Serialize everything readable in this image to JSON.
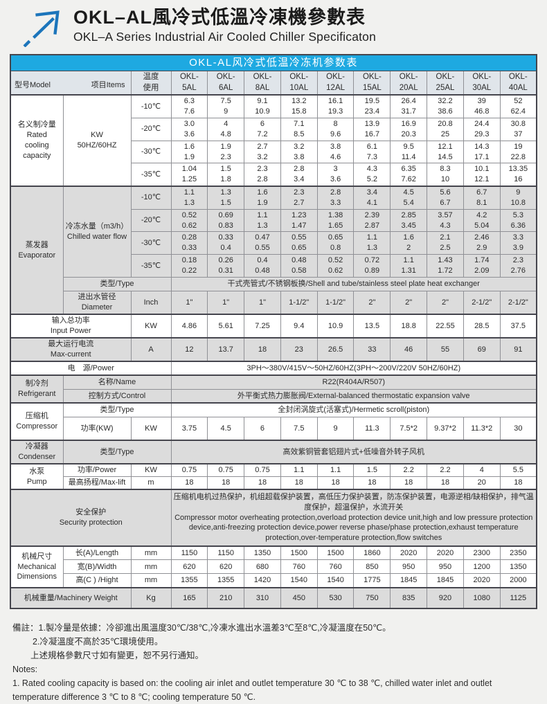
{
  "page": {
    "title_zh": "OKL–AL風冷式低溫冷凍機參數表",
    "title_en": "OKL–A Series Industrial Air Cooled Chiller Specificaton"
  },
  "colors": {
    "accent_cyan": "#1ea9e1",
    "arrow_blue": "#1c75bb",
    "header_row_bg": "#e0e5ea",
    "shaded_row_bg": "#dcdcdc",
    "page_bg": "#f1f1ef"
  },
  "table": {
    "title": "OKL-AL风冷式低温冷冻机参数表",
    "corner": {
      "model_label": "型号Model",
      "items_label": "项目Items"
    },
    "temp_header": "温度\n使用",
    "model_prefix": "OKL-",
    "models": [
      "5AL",
      "6AL",
      "8AL",
      "10AL",
      "12AL",
      "15AL",
      "20AL",
      "25AL",
      "30AL",
      "40AL"
    ],
    "rows": [
      {
        "size": "md",
        "sep": true,
        "left": [
          {
            "t": "名义制冷量\nRated\ncooling\ncapacity",
            "rs": 4,
            "cls": "cat",
            "n": "cell-category"
          },
          {
            "t": "KW\n50HZ/60HZ",
            "rs": 4,
            "cls": "item",
            "n": "cell-item"
          },
          {
            "t": "-10℃",
            "cls": "unit",
            "n": "cell-temp"
          }
        ],
        "values": [
          "6.3\n7.6",
          "7.5\n9",
          "9.1\n10.9",
          "13.2\n15.8",
          "16.1\n19.3",
          "19.5\n23.4",
          "26.4\n31.7",
          "32.2\n38.6",
          "39\n46.8",
          "52\n62.4"
        ]
      },
      {
        "size": "md",
        "left": [
          {
            "t": "-20℃",
            "cls": "unit",
            "n": "cell-temp"
          }
        ],
        "values": [
          "3.0\n3.6",
          "4\n4.8",
          "6\n7.2",
          "7.1\n8.5",
          "8\n9.6",
          "13.9\n16.7",
          "16.9\n20.3",
          "20.8\n25",
          "24.4\n29.3",
          "30.8\n37"
        ]
      },
      {
        "size": "md",
        "left": [
          {
            "t": "-30℃",
            "cls": "unit",
            "n": "cell-temp"
          }
        ],
        "values": [
          "1.6\n1.9",
          "1.9\n2.3",
          "2.7\n3.2",
          "3.2\n3.8",
          "3.8\n4.6",
          "6.1\n7.3",
          "9.5\n11.4",
          "12.1\n14.5",
          "14.3\n17.1",
          "19\n22.8"
        ]
      },
      {
        "size": "md",
        "left": [
          {
            "t": "-35℃",
            "cls": "unit",
            "n": "cell-temp"
          }
        ],
        "values": [
          "1.04\n1.25",
          "1.5\n1.8",
          "2.3\n2.8",
          "2.8\n3.4",
          "3\n3.6",
          "4.3\n5.2",
          "6.35\n7.62",
          "8.3\n10",
          "10.1\n12.1",
          "13.35\n16"
        ]
      },
      {
        "size": "md",
        "sep": true,
        "shaded": true,
        "left": [
          {
            "t": "蒸发器\nEvaporator",
            "rs": 6,
            "cls": "cat",
            "n": "cell-category"
          },
          {
            "t": "冷冻水量（m3/h）\nChilled water flow",
            "rs": 4,
            "cls": "item",
            "n": "cell-item"
          },
          {
            "t": "-10℃",
            "cls": "unit",
            "n": "cell-temp"
          }
        ],
        "values": [
          "1.1\n1.3",
          "1.3\n1.5",
          "1.6\n1.9",
          "2.3\n2.7",
          "2.8\n3.3",
          "3.4\n4.1",
          "4.5\n5.4",
          "5.6\n6.7",
          "6.7\n8.1",
          "9\n10.8"
        ]
      },
      {
        "size": "md",
        "shaded": true,
        "left": [
          {
            "t": "-20℃",
            "cls": "unit",
            "n": "cell-temp"
          }
        ],
        "values": [
          "0.52\n0.62",
          "0.69\n0.83",
          "1.1\n1.3",
          "1.23\n1.47",
          "1.38\n1.65",
          "2.39\n2.87",
          "2.85\n3.45",
          "3.57\n4.3",
          "4.2\n5.04",
          "5.3\n6.36"
        ]
      },
      {
        "size": "md",
        "shaded": true,
        "left": [
          {
            "t": "-30℃",
            "cls": "unit",
            "n": "cell-temp"
          }
        ],
        "values": [
          "0.28\n0.33",
          "0.33\n0.4",
          "0.47\n0.55",
          "0.55\n0.65",
          "0.65\n0.8",
          "1.1\n1.3",
          "1.6\n2",
          "2.1\n2.5",
          "2.46\n2.9",
          "3.3\n3.9"
        ]
      },
      {
        "size": "md",
        "shaded": true,
        "left": [
          {
            "t": "-35℃",
            "cls": "unit",
            "n": "cell-temp"
          }
        ],
        "values": [
          "0.18\n0.22",
          "0.26\n0.31",
          "0.4\n0.48",
          "0.48\n0.58",
          "0.52\n0.62",
          "0.72\n0.89",
          "1.1\n1.31",
          "1.43\n1.72",
          "1.74\n2.09",
          "2.3\n2.76"
        ]
      },
      {
        "size": "sm",
        "shaded": true,
        "left": [
          {
            "t": "类型/Type",
            "cs": 2,
            "cls": "item",
            "n": "cell-item"
          }
        ],
        "value": "干式壳管式/不锈钢板换/Shell and tube/stainless steel plate heat exchanger"
      },
      {
        "size": "lg",
        "shaded": true,
        "left": [
          {
            "t": "进出水管径\nDiameter",
            "cls": "item",
            "n": "cell-item"
          },
          {
            "t": "Inch",
            "cls": "unit",
            "n": "cell-unit"
          }
        ],
        "values": [
          "1\"",
          "1\"",
          "1\"",
          "1-1/2\"",
          "1-1/2\"",
          "2\"",
          "2\"",
          "2\"",
          "2-1/2\"",
          "2-1/2\""
        ]
      },
      {
        "size": "lg",
        "sep": true,
        "left": [
          {
            "t": "输入总功率\nInput Power",
            "cs": 2,
            "cls": "cat",
            "n": "cell-category"
          },
          {
            "t": "KW",
            "cls": "unit",
            "n": "cell-unit"
          }
        ],
        "values": [
          "4.86",
          "5.61",
          "7.25",
          "9.4",
          "10.9",
          "13.5",
          "18.8",
          "22.55",
          "28.5",
          "37.5"
        ]
      },
      {
        "size": "lg",
        "sep": true,
        "shaded": true,
        "left": [
          {
            "t": "最大运行电流\nMax-current",
            "cs": 2,
            "cls": "cat",
            "n": "cell-category"
          },
          {
            "t": "A",
            "cls": "unit",
            "n": "cell-unit"
          }
        ],
        "values": [
          "12",
          "13.7",
          "18",
          "23",
          "26.5",
          "33",
          "46",
          "55",
          "69",
          "91"
        ]
      },
      {
        "size": "sm",
        "sep": true,
        "left": [
          {
            "t": "电　源/Power",
            "cs": 3,
            "cls": "cat",
            "n": "cell-category"
          }
        ],
        "value": "3PH～380V/415V～50HZ/60HZ(3PH～200V/220V  50HZ/60HZ)"
      },
      {
        "size": "sm",
        "sep": true,
        "shaded": true,
        "left": [
          {
            "t": "制冷剂\nRefrigerant",
            "rs": 2,
            "cls": "cat",
            "n": "cell-category"
          },
          {
            "t": "名称/Name",
            "cs": 2,
            "cls": "item",
            "n": "cell-item"
          }
        ],
        "value": "R22(R404A/R507)"
      },
      {
        "size": "sm",
        "shaded": true,
        "left": [
          {
            "t": "控制方式/Control",
            "cs": 2,
            "cls": "item",
            "n": "cell-item"
          }
        ],
        "value": "外平衡式热力膨胀阀/External-balanced thermostatic expansion valve"
      },
      {
        "size": "sm",
        "sep": true,
        "left": [
          {
            "t": "压缩机\nCompressor",
            "rs": 2,
            "cls": "cat",
            "n": "cell-category"
          },
          {
            "t": "类型/Type",
            "cs": 2,
            "cls": "item",
            "n": "cell-item"
          }
        ],
        "value": "全封闭涡旋式(活塞式)/Hermetic scroll(piston)"
      },
      {
        "size": "lg",
        "left": [
          {
            "t": "功率(KW)",
            "cls": "item",
            "n": "cell-item"
          },
          {
            "t": "KW",
            "cls": "unit",
            "n": "cell-unit"
          }
        ],
        "values": [
          "3.75",
          "4.5",
          "6",
          "7.5",
          "9",
          "11.3",
          "7.5*2",
          "9.37*2",
          "11.3*2",
          "30"
        ]
      },
      {
        "size": "lg",
        "sep": true,
        "shaded": true,
        "left": [
          {
            "t": "冷凝器\nCondenser",
            "cls": "cat",
            "n": "cell-category"
          },
          {
            "t": "类型/Type",
            "cs": 2,
            "cls": "item",
            "n": "cell-item"
          }
        ],
        "value": "高效紫铜管套铝翅片式+低噪音外转子风机"
      },
      {
        "size": "xs",
        "sep": true,
        "left": [
          {
            "t": "水泵\nPump",
            "rs": 2,
            "cls": "cat",
            "n": "cell-category"
          },
          {
            "t": "功率/Power",
            "cls": "item",
            "n": "cell-item"
          },
          {
            "t": "KW",
            "cls": "unit",
            "n": "cell-unit"
          }
        ],
        "values": [
          "0.75",
          "0.75",
          "0.75",
          "1.1",
          "1.1",
          "1.5",
          "2.2",
          "2.2",
          "4",
          "5.5"
        ]
      },
      {
        "size": "xs",
        "left": [
          {
            "t": "最高扬程/Max-lift",
            "cls": "item",
            "n": "cell-item"
          },
          {
            "t": "m",
            "cls": "unit",
            "n": "cell-unit"
          }
        ],
        "values": [
          "18",
          "18",
          "18",
          "18",
          "18",
          "18",
          "18",
          "18",
          "20",
          "18"
        ]
      },
      {
        "size": "xl",
        "sep": true,
        "shaded": true,
        "leftAlign": true,
        "left": [
          {
            "t": "安全保护\nSecurity protection",
            "cs": 3,
            "cls": "cat",
            "n": "cell-category"
          }
        ],
        "value": "压缩机电机过热保护，机组超载保护装置，高低压力保护装置，防冻保护装置，电源逆相/缺相保护，排气温度保护，超温保护，水流开关\n Compressor motor overheating protection,overload protection device unit,high and low pressure protection device,anti-freezing protection device,power reverse phase/phase protection,exhaust temperature protection,over-temperature protection,flow switches"
      },
      {
        "size": "sm",
        "sep": true,
        "left": [
          {
            "t": "机械尺寸\nMechanical\nDimensions",
            "rs": 3,
            "cls": "cat",
            "n": "cell-category"
          },
          {
            "t": "长(A)/Length",
            "cls": "item",
            "n": "cell-item"
          },
          {
            "t": "mm",
            "cls": "unit",
            "n": "cell-unit"
          }
        ],
        "values": [
          "1150",
          "1150",
          "1350",
          "1500",
          "1500",
          "1860",
          "2020",
          "2020",
          "2300",
          "2350"
        ]
      },
      {
        "size": "sm",
        "left": [
          {
            "t": "宽(B)/Width",
            "cls": "item",
            "n": "cell-item"
          },
          {
            "t": "mm",
            "cls": "unit",
            "n": "cell-unit"
          }
        ],
        "values": [
          "620",
          "620",
          "680",
          "760",
          "760",
          "850",
          "950",
          "950",
          "1200",
          "1350"
        ]
      },
      {
        "size": "sm",
        "left": [
          {
            "t": "高(C ) /Hight",
            "cls": "item",
            "n": "cell-item"
          },
          {
            "t": "mm",
            "cls": "unit",
            "n": "cell-unit"
          }
        ],
        "values": [
          "1355",
          "1355",
          "1420",
          "1540",
          "1540",
          "1775",
          "1845",
          "1845",
          "2020",
          "2000"
        ]
      },
      {
        "size": "md",
        "sep": true,
        "shaded": true,
        "left": [
          {
            "t": "机械重量/Machinery Weight",
            "cs": 2,
            "cls": "cat",
            "n": "cell-category"
          },
          {
            "t": "Kg",
            "cls": "unit",
            "n": "cell-unit"
          }
        ],
        "values": [
          "165",
          "210",
          "310",
          "450",
          "530",
          "750",
          "835",
          "920",
          "1080",
          "1125"
        ]
      }
    ]
  },
  "notes": [
    "備註：1.製冷量是依據：冷卻進出風溫度30℃/38℃,冷凍水進出水溫差3℃至8℃,冷凝溫度在50℃。",
    "2.冷凝溫度不高於35℃環境使用。",
    "上述規格參數尺寸如有變更，恕不另行通知。",
    "Notes:",
    "1. Rated cooling capacity is based on: the cooling air inlet and outlet temperature 30 ℃ to 38 ℃, chilled water inlet and outlet temperature difference 3 ℃ to 8 ℃; cooling temperature 50 ℃."
  ]
}
